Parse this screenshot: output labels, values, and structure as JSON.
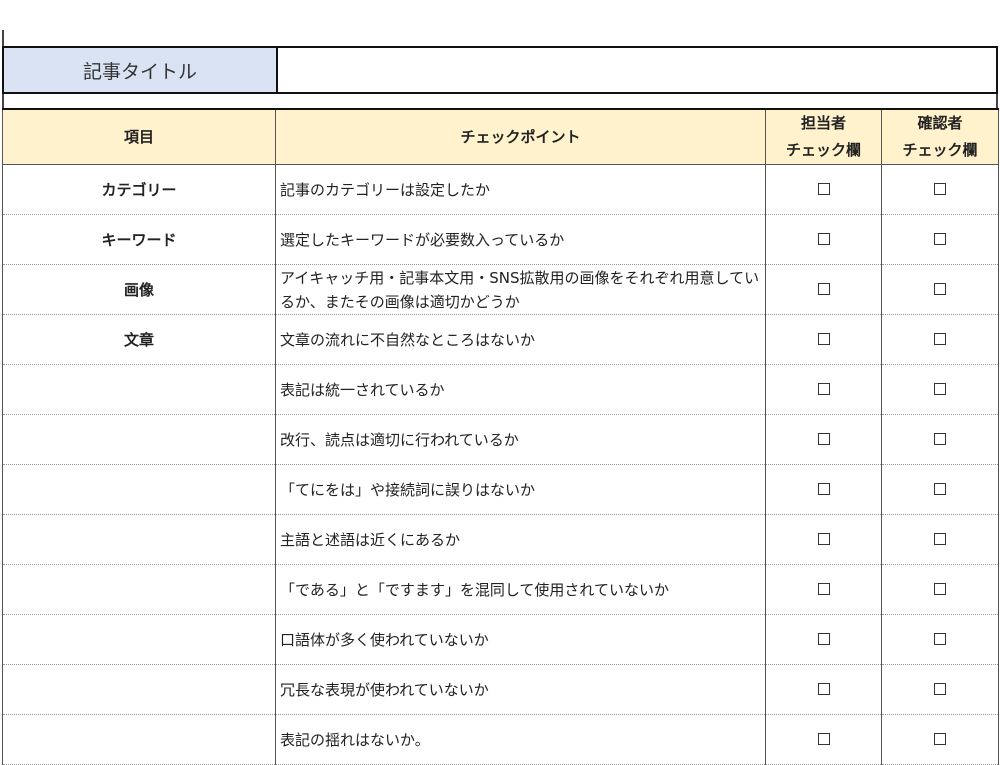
{
  "title_label": "記事タイトル",
  "title_value": "",
  "headers": {
    "item": "項目",
    "point": "チェックポイント",
    "owner": [
      "担当者",
      "チェック欄"
    ],
    "reviewer": [
      "確認者",
      "チェック欄"
    ]
  },
  "rows": [
    {
      "item": "カテゴリー",
      "point": "記事のカテゴリーは設定したか"
    },
    {
      "item": "キーワード",
      "point": "選定したキーワードが必要数入っているか"
    },
    {
      "item": "画像",
      "point": "アイキャッチ用・記事本文用・SNS拡散用の画像をそれぞれ用意しているか、またその画像は適切かどうか"
    },
    {
      "item": "文章",
      "point": "文章の流れに不自然なところはないか"
    },
    {
      "item": "",
      "point": "表記は統一されているか"
    },
    {
      "item": "",
      "point": "改行、読点は適切に行われているか"
    },
    {
      "item": "",
      "point": "「てにをは」や接続詞に誤りはないか"
    },
    {
      "item": "",
      "point": "主語と述語は近くにあるか"
    },
    {
      "item": "",
      "point": "「である」と「ですます」を混同して使用されていないか"
    },
    {
      "item": "",
      "point": "口語体が多く使われていないか"
    },
    {
      "item": "",
      "point": "冗長な表現が使われていないか"
    },
    {
      "item": "",
      "point": "表記の揺れはないか。"
    }
  ],
  "checkbox_icon": "empty-checkbox",
  "colors": {
    "title_label_bg": "#dae3f3",
    "header_bg": "#fff2cc"
  }
}
